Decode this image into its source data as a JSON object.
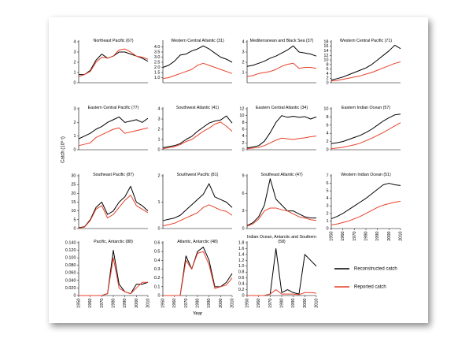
{
  "chart_data": [
    {
      "type": "line",
      "title": "Northeast Pacific (67)",
      "x": [
        1950,
        1955,
        1960,
        1965,
        1970,
        1975,
        1980,
        1985,
        1990,
        1995,
        2000,
        2005,
        2010
      ],
      "xlim": [
        1950,
        2010
      ],
      "ylim": [
        0,
        4
      ],
      "yticks": [
        0,
        1,
        2,
        3,
        4
      ],
      "series": [
        {
          "name": "Reconstructed catch",
          "color": "#000000",
          "values": [
            0.8,
            0.8,
            1.2,
            2.2,
            2.8,
            2.4,
            2.6,
            3.0,
            3.0,
            2.8,
            2.6,
            2.4,
            2.1
          ]
        },
        {
          "name": "Reported catch",
          "color": "#e8402a",
          "values": [
            0.6,
            0.8,
            1.1,
            2.0,
            2.5,
            2.4,
            2.6,
            3.2,
            3.3,
            3.0,
            2.6,
            2.5,
            2.3
          ]
        }
      ]
    },
    {
      "type": "line",
      "title": "Western Central Atlantic (31)",
      "x": [
        1950,
        1955,
        1960,
        1965,
        1970,
        1975,
        1980,
        1985,
        1990,
        1995,
        2000,
        2005,
        2010
      ],
      "xlim": [
        1950,
        2010
      ],
      "ylim": [
        0.5,
        4.5
      ],
      "yticks": [
        {
          "value": 1,
          "label": "1.0"
        },
        1.5,
        {
          "value": 2,
          "label": "2.0"
        },
        2.5,
        {
          "value": 3,
          "label": "3.0"
        },
        3.5,
        {
          "value": 4,
          "label": "4.0"
        }
      ],
      "series": [
        {
          "name": "Reconstructed catch",
          "color": "#000000",
          "values": [
            2.0,
            2.2,
            2.6,
            3.2,
            3.3,
            3.6,
            3.8,
            4.1,
            3.8,
            3.4,
            3.0,
            2.8,
            2.5
          ]
        },
        {
          "name": "Reported catch",
          "color": "#e8402a",
          "values": [
            0.9,
            1.0,
            1.2,
            1.4,
            1.6,
            1.8,
            2.2,
            2.4,
            2.2,
            2.0,
            1.8,
            1.6,
            1.4
          ]
        }
      ]
    },
    {
      "type": "line",
      "title": "Mediterranean and Black Sea (37)",
      "x": [
        1950,
        1955,
        1960,
        1965,
        1970,
        1975,
        1980,
        1985,
        1990,
        1995,
        2000,
        2005,
        2010
      ],
      "xlim": [
        1950,
        2010
      ],
      "ylim": [
        0,
        4
      ],
      "yticks": [
        1,
        2,
        3,
        4
      ],
      "series": [
        {
          "name": "Reconstructed catch",
          "color": "#000000",
          "values": [
            1.6,
            1.7,
            1.9,
            2.1,
            2.4,
            2.6,
            2.9,
            3.2,
            3.6,
            3.0,
            2.9,
            2.8,
            2.6
          ]
        },
        {
          "name": "Reported catch",
          "color": "#e8402a",
          "values": [
            0.6,
            0.7,
            0.9,
            1.0,
            1.1,
            1.3,
            1.6,
            1.8,
            1.9,
            1.4,
            1.5,
            1.5,
            1.4
          ]
        }
      ]
    },
    {
      "type": "line",
      "title": "Western Central Pacific (71)",
      "x": [
        1950,
        1955,
        1960,
        1965,
        1970,
        1975,
        1980,
        1985,
        1990,
        1995,
        2000,
        2005,
        2010
      ],
      "xlim": [
        1950,
        2010
      ],
      "ylim": [
        0,
        18
      ],
      "yticks": [
        0,
        2,
        4,
        6,
        8,
        10,
        12,
        14,
        16,
        18
      ],
      "series": [
        {
          "name": "Reconstructed catch",
          "color": "#000000",
          "values": [
            1.2,
            1.8,
            2.5,
            3.5,
            4.5,
            5.5,
            6.5,
            8,
            10,
            12,
            14,
            16.5,
            15
          ]
        },
        {
          "name": "Reported catch",
          "color": "#e8402a",
          "values": [
            0.8,
            1.0,
            1.5,
            2.0,
            2.5,
            3.0,
            3.8,
            4.5,
            5.5,
            6.5,
            7.5,
            8.5,
            9.2
          ]
        }
      ]
    },
    {
      "type": "line",
      "title": "Eastern Central Pacific (77)",
      "ylabel": "Catch (10⁶ t)",
      "x": [
        1950,
        1955,
        1960,
        1965,
        1970,
        1975,
        1980,
        1985,
        1990,
        1995,
        2000,
        2005,
        2010
      ],
      "xlim": [
        1950,
        2010
      ],
      "ylim": [
        0,
        3
      ],
      "yticks": [
        0,
        1,
        2,
        3
      ],
      "series": [
        {
          "name": "Reconstructed catch",
          "color": "#000000",
          "values": [
            0.8,
            1.0,
            1.2,
            1.5,
            1.7,
            2.0,
            2.2,
            2.4,
            2.0,
            2.1,
            2.2,
            2.0,
            2.3
          ]
        },
        {
          "name": "Reported catch",
          "color": "#e8402a",
          "values": [
            0.3,
            0.4,
            0.5,
            0.9,
            1.1,
            1.3,
            1.5,
            1.6,
            1.2,
            1.3,
            1.4,
            1.5,
            1.6
          ]
        }
      ]
    },
    {
      "type": "line",
      "title": "Southwest Atlantic (41)",
      "x": [
        1950,
        1955,
        1960,
        1965,
        1970,
        1975,
        1980,
        1985,
        1990,
        1995,
        2000,
        2005,
        2010
      ],
      "xlim": [
        1950,
        2010
      ],
      "ylim": [
        0,
        4
      ],
      "yticks": [
        0,
        1,
        2,
        3,
        4
      ],
      "series": [
        {
          "name": "Reconstructed catch",
          "color": "#000000",
          "values": [
            0.2,
            0.3,
            0.4,
            0.6,
            1.0,
            1.3,
            1.8,
            2.2,
            2.6,
            2.8,
            2.9,
            3.3,
            2.6
          ]
        },
        {
          "name": "Reported catch",
          "color": "#e8402a",
          "values": [
            0.1,
            0.2,
            0.3,
            0.5,
            0.8,
            1.0,
            1.4,
            1.8,
            2.1,
            2.5,
            2.7,
            2.3,
            1.8
          ]
        }
      ]
    },
    {
      "type": "line",
      "title": "Eastern Central Atlantic (34)",
      "x": [
        1950,
        1955,
        1960,
        1965,
        1970,
        1975,
        1980,
        1985,
        1990,
        1995,
        2000,
        2005,
        2010
      ],
      "xlim": [
        1950,
        2010
      ],
      "ylim": [
        0,
        12
      ],
      "yticks": [
        0,
        2,
        4,
        6,
        8,
        10,
        12
      ],
      "series": [
        {
          "name": "Reconstructed catch",
          "color": "#000000",
          "values": [
            0.5,
            0.8,
            1.2,
            2.5,
            5,
            8,
            10,
            9.5,
            9.8,
            9.5,
            9.7,
            9,
            9.6
          ]
        },
        {
          "name": "Reported catch",
          "color": "#e8402a",
          "values": [
            0.3,
            0.5,
            0.7,
            1.2,
            2.0,
            2.8,
            3.4,
            3.2,
            3.0,
            3.3,
            3.5,
            3.8,
            4.0
          ]
        }
      ]
    },
    {
      "type": "line",
      "title": "Eastern Indian Ocean (57)",
      "x": [
        1950,
        1955,
        1960,
        1965,
        1970,
        1975,
        1980,
        1985,
        1990,
        1995,
        2000,
        2005,
        2010
      ],
      "xlim": [
        1950,
        2010
      ],
      "ylim": [
        0,
        10
      ],
      "yticks": [
        0,
        2,
        4,
        6,
        8,
        10
      ],
      "series": [
        {
          "name": "Reconstructed catch",
          "color": "#000000",
          "values": [
            1.5,
            1.7,
            2.0,
            2.5,
            3.0,
            3.5,
            4.2,
            5.0,
            6.0,
            7.0,
            7.8,
            8.5,
            8.7
          ]
        },
        {
          "name": "Reported catch",
          "color": "#e8402a",
          "values": [
            0.3,
            0.4,
            0.6,
            0.9,
            1.2,
            1.6,
            2.2,
            2.8,
            3.5,
            4.2,
            5.0,
            5.8,
            6.6
          ]
        }
      ]
    },
    {
      "type": "line",
      "title": "Southeast Pacific (87)",
      "x": [
        1950,
        1955,
        1960,
        1965,
        1970,
        1975,
        1980,
        1985,
        1990,
        1995,
        2000,
        2005,
        2010
      ],
      "xlim": [
        1950,
        2010
      ],
      "ylim": [
        0,
        30
      ],
      "yticks": [
        0,
        5,
        10,
        15,
        20,
        25,
        30
      ],
      "series": [
        {
          "name": "Reconstructed catch",
          "color": "#000000",
          "values": [
            0.5,
            1,
            5,
            12,
            15,
            8,
            10,
            15,
            18,
            24,
            15,
            13,
            10
          ]
        },
        {
          "name": "Reported catch",
          "color": "#e8402a",
          "values": [
            0.3,
            0.8,
            4.5,
            11,
            13,
            6,
            8,
            12,
            16,
            19,
            13,
            11,
            9
          ]
        }
      ]
    },
    {
      "type": "line",
      "title": "Southwest Pacific (81)",
      "x": [
        1950,
        1955,
        1960,
        1965,
        1970,
        1975,
        1980,
        1985,
        1990,
        1995,
        2000,
        2005,
        2010
      ],
      "xlim": [
        1950,
        2010
      ],
      "ylim": [
        0,
        2
      ],
      "yticks": [
        0,
        1,
        2
      ],
      "series": [
        {
          "name": "Reconstructed catch",
          "color": "#000000",
          "values": [
            0.3,
            0.35,
            0.4,
            0.5,
            0.7,
            0.9,
            1.1,
            1.3,
            1.7,
            1.2,
            1.1,
            1.0,
            0.8
          ]
        },
        {
          "name": "Reported catch",
          "color": "#e8402a",
          "values": [
            0.1,
            0.15,
            0.2,
            0.3,
            0.4,
            0.5,
            0.6,
            0.8,
            0.9,
            0.8,
            0.7,
            0.65,
            0.5
          ]
        }
      ]
    },
    {
      "type": "line",
      "title": "Southeast Atlantic (47)",
      "x": [
        1950,
        1955,
        1960,
        1965,
        1970,
        1975,
        1980,
        1985,
        1990,
        1995,
        2000,
        2005,
        2010
      ],
      "xlim": [
        1950,
        2010
      ],
      "ylim": [
        0,
        9
      ],
      "yticks": [
        0,
        3,
        6,
        9
      ],
      "series": [
        {
          "name": "Reconstructed catch",
          "color": "#000000",
          "values": [
            0.5,
            1,
            2,
            4,
            8.5,
            5,
            4,
            3,
            3,
            2.5,
            2,
            1.8,
            1.8
          ]
        },
        {
          "name": "Reported catch",
          "color": "#e8402a",
          "values": [
            0.4,
            0.8,
            1.6,
            3,
            3.5,
            3.5,
            3.2,
            3,
            2.5,
            2,
            1.8,
            1.5,
            1.4
          ]
        }
      ]
    },
    {
      "type": "line",
      "title": "Western Indian Ocean (51)",
      "x": [
        1950,
        1955,
        1960,
        1965,
        1970,
        1975,
        1980,
        1985,
        1990,
        1995,
        2000,
        2005,
        2010
      ],
      "xlim": [
        1950,
        2010
      ],
      "xticks": [
        1950,
        1960,
        1970,
        1980,
        1990,
        2000,
        2010
      ],
      "ylim": [
        0,
        7
      ],
      "yticks": [
        0,
        1,
        2,
        3,
        4,
        5,
        6,
        7
      ],
      "series": [
        {
          "name": "Reconstructed catch",
          "color": "#000000",
          "values": [
            1.3,
            1.6,
            2.0,
            2.5,
            3.0,
            3.5,
            4.0,
            4.6,
            5.2,
            5.8,
            6.0,
            5.8,
            5.7
          ]
        },
        {
          "name": "Reported catch",
          "color": "#e8402a",
          "values": [
            0.5,
            0.6,
            0.8,
            1.0,
            1.3,
            1.6,
            2.0,
            2.4,
            2.8,
            3.1,
            3.3,
            3.5,
            3.6
          ]
        }
      ]
    },
    {
      "type": "line",
      "title": "Pacific, Antarctic (88)",
      "x": [
        1950,
        1955,
        1960,
        1965,
        1970,
        1975,
        1980,
        1985,
        1990,
        1995,
        2000,
        2005,
        2010
      ],
      "xlim": [
        1950,
        2010
      ],
      "xticks": [
        1950,
        1960,
        1970,
        1980,
        1990,
        2000,
        2010
      ],
      "ylim": [
        0,
        0.14
      ],
      "yticks": [
        0,
        {
          "value": 0.02,
          "label": "0.020"
        },
        {
          "value": 0.04,
          "label": "0.040"
        },
        {
          "value": 0.06,
          "label": "0.060"
        },
        {
          "value": 0.08,
          "label": "0.080"
        },
        {
          "value": 0.1,
          "label": "0.100"
        },
        {
          "value": 0.12,
          "label": "0.120"
        },
        {
          "value": 0.14,
          "label": "0.140"
        }
      ],
      "series": [
        {
          "name": "Reconstructed catch",
          "color": "#000000",
          "values": [
            0,
            0,
            0,
            0,
            0,
            0.005,
            0.12,
            0.03,
            0.01,
            0.005,
            0.03,
            0.03,
            0.035
          ]
        },
        {
          "name": "Reported catch",
          "color": "#e8402a",
          "values": [
            0,
            0,
            0,
            0,
            0,
            0.005,
            0.1,
            0.02,
            0.01,
            0.005,
            0.02,
            0.035,
            0.035
          ]
        }
      ]
    },
    {
      "type": "line",
      "title": "Atlantic, Antarctic (48)",
      "xlabel": "Year",
      "x": [
        1950,
        1955,
        1960,
        1965,
        1970,
        1975,
        1980,
        1985,
        1990,
        1995,
        2000,
        2005,
        2010
      ],
      "xlim": [
        1950,
        2010
      ],
      "xticks": [
        1950,
        1960,
        1970,
        1980,
        1990,
        2000,
        2010
      ],
      "ylim": [
        0,
        0.6
      ],
      "yticks": [
        0,
        0.1,
        0.2,
        0.3,
        0.4,
        0.5,
        0.6
      ],
      "series": [
        {
          "name": "Reconstructed catch",
          "color": "#000000",
          "values": [
            0,
            0,
            0,
            0,
            0.45,
            0.3,
            0.5,
            0.55,
            0.4,
            0.1,
            0.1,
            0.15,
            0.25
          ]
        },
        {
          "name": "Reported catch",
          "color": "#e8402a",
          "values": [
            0,
            0,
            0,
            0,
            0.4,
            0.3,
            0.48,
            0.5,
            0.35,
            0.08,
            0.1,
            0.12,
            0.2
          ]
        }
      ]
    },
    {
      "type": "line",
      "title": "Indian Ocean, Antarctic and Southern (58)",
      "legend": true,
      "x": [
        1950,
        1955,
        1960,
        1965,
        1970,
        1975,
        1980,
        1985,
        1990,
        1995,
        2000,
        2005,
        2010
      ],
      "xlim": [
        1950,
        2010
      ],
      "xticks": [
        1950,
        1960,
        1970,
        1980,
        1990,
        2000,
        2010
      ],
      "ylim": [
        0,
        1.8
      ],
      "yticks": [
        0,
        0.2,
        0.4,
        0.6,
        0.8,
        {
          "value": 1,
          "label": "1.0"
        },
        1.2,
        1.4,
        1.6,
        1.8
      ],
      "series": [
        {
          "name": "Reconstructed catch",
          "color": "#000000",
          "values": [
            0,
            0,
            0,
            0,
            0.05,
            1.6,
            0.1,
            0.2,
            0.1,
            0.05,
            1.4,
            1.2,
            1.0
          ]
        },
        {
          "name": "Reported catch",
          "color": "#e8402a",
          "values": [
            0,
            0,
            0,
            0,
            0.05,
            0.2,
            0.05,
            0.05,
            0.05,
            0.03,
            0.1,
            0.1,
            0.08
          ]
        }
      ]
    }
  ]
}
